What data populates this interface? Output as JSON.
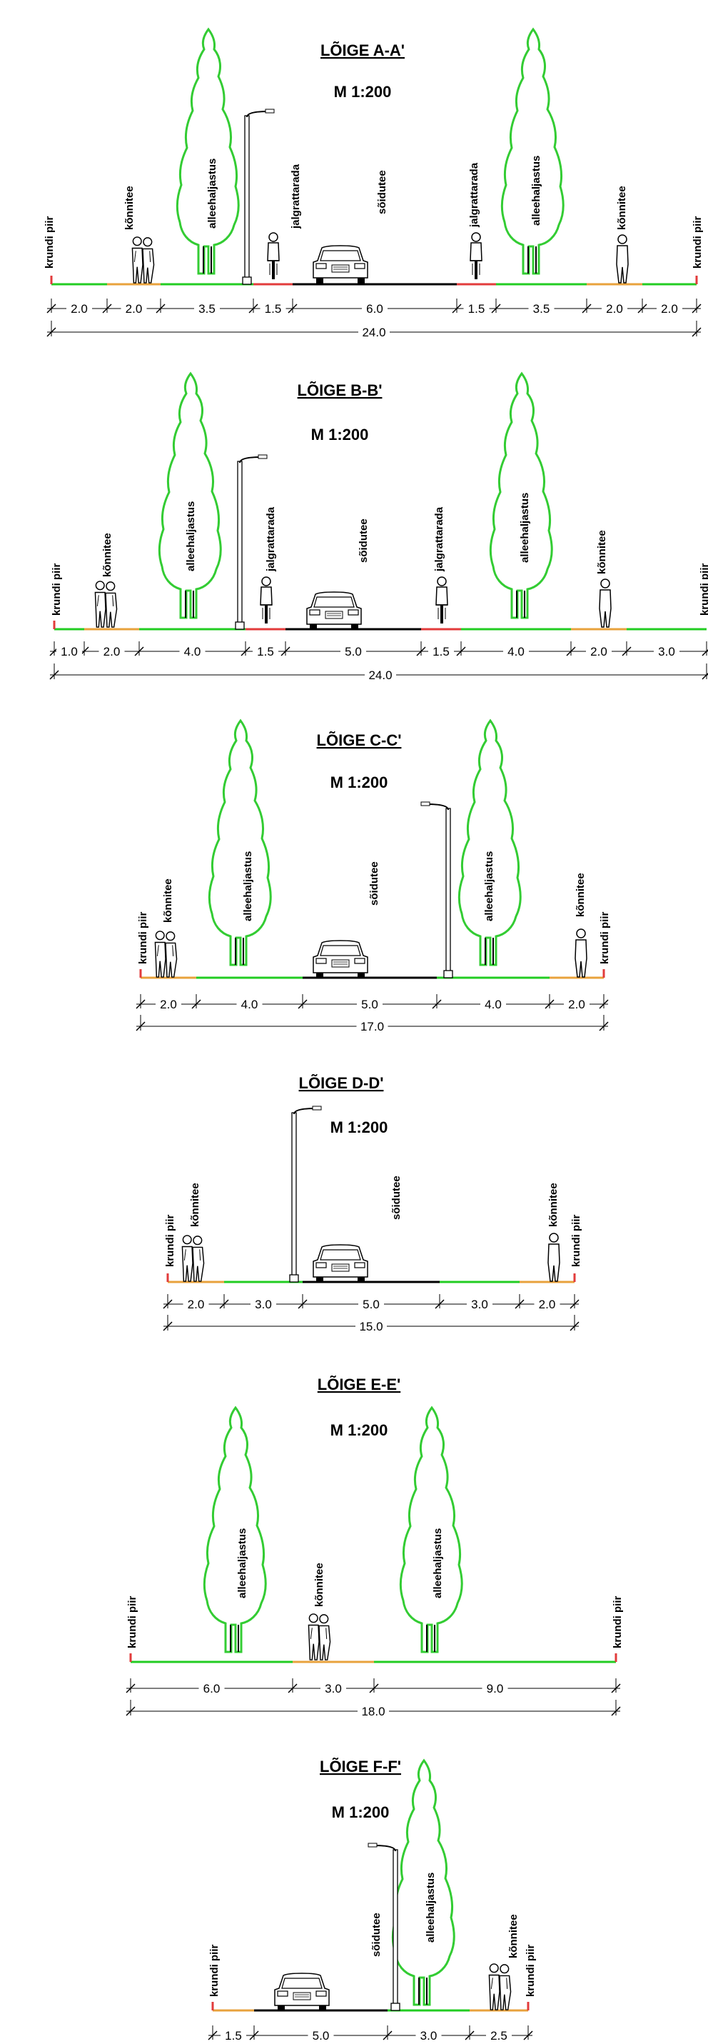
{
  "sections": [
    {
      "title": "LÕIGE A-A'",
      "scale": "M 1:200",
      "labels": [
        "krundi piir",
        "kõnnitee",
        "alleehaljastus",
        "jalgrattarada",
        "sõidutee",
        "jalgrattarada",
        "alleehaljastus",
        "kõnnitee",
        "krundi piir"
      ],
      "segments": [
        "2.0",
        "2.0",
        "3.5",
        "1.5",
        "6.0",
        "1.5",
        "3.5",
        "2.0",
        "2.0"
      ],
      "total": "24.0"
    },
    {
      "title": "LÕIGE B-B'",
      "scale": "M 1:200",
      "labels": [
        "krundi piir",
        "kõnnitee",
        "alleehaljastus",
        "jalgrattarada",
        "sõidutee",
        "jalgrattarada",
        "alleehaljastus",
        "kõnnitee",
        "krundi piir"
      ],
      "segments": [
        "1.0",
        "2.0",
        "4.0",
        "1.5",
        "5.0",
        "1.5",
        "4.0",
        "2.0",
        "3.0"
      ],
      "total": "24.0"
    },
    {
      "title": "LÕIGE C-C'",
      "scale": "M 1:200",
      "labels": [
        "krundi piir",
        "kõnnitee",
        "alleehaljastus",
        "sõidutee",
        "alleehaljastus",
        "kõnnitee",
        "krundi piir"
      ],
      "segments": [
        "2.0",
        "4.0",
        "5.0",
        "4.0",
        "2.0"
      ],
      "total": "17.0"
    },
    {
      "title": "LÕIGE D-D'",
      "scale": "M 1:200",
      "labels": [
        "krundi piir",
        "kõnnitee",
        "sõidutee",
        "kõnnitee",
        "krundi piir"
      ],
      "segments": [
        "2.0",
        "3.0",
        "5.0",
        "3.0",
        "2.0"
      ],
      "total": "15.0"
    },
    {
      "title": "LÕIGE E-E'",
      "scale": "M 1:200",
      "labels": [
        "krundi piir",
        "alleehaljastus",
        "kõnnitee",
        "alleehaljastus",
        "krundi piir"
      ],
      "segments": [
        "6.0",
        "3.0",
        "9.0"
      ],
      "total": "18.0"
    },
    {
      "title": "LÕIGE F-F'",
      "scale": "M 1:200",
      "labels": [
        "krundi piir",
        "sõidutee",
        "alleehaljastus",
        "kõnnitee",
        "krundi piir"
      ],
      "segments": [
        "1.5",
        "5.0",
        "3.0",
        "2.5"
      ]
    }
  ],
  "colors": {
    "tree": "#33cc33",
    "green_strip": "#22cc22",
    "walkway": "#e8a23c",
    "bike_lane": "#e23b3b",
    "road": "#000000",
    "boundary_marker": "#e23b3b",
    "line": "#000000"
  },
  "icons": [
    "tree-icon",
    "pedestrian-icon",
    "cyclist-icon",
    "car-icon",
    "lamp-post-icon",
    "boundary-marker-icon"
  ]
}
